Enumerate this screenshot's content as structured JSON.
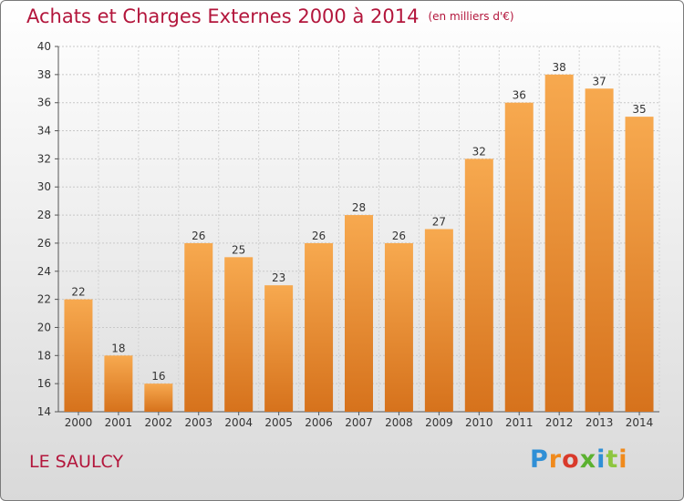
{
  "header": {
    "title": "Achats et Charges Externes 2000 à 2014",
    "unit": "(en milliers d'€)"
  },
  "commune": "LE SAULCY",
  "logo": {
    "letters": [
      "P",
      "r",
      "o",
      "x",
      "i",
      "t",
      "i"
    ],
    "colors": [
      "#2f8fd6",
      "#f08a1c",
      "#d93a2b",
      "#5bb130",
      "#2f8fd6",
      "#8dc63f",
      "#f08a1c"
    ]
  },
  "colors": {
    "title": "#b3163c",
    "bar_top": "#f7a94f",
    "bar_bottom": "#d6721c"
  },
  "chart_data": {
    "type": "bar",
    "categories": [
      "2000",
      "2001",
      "2002",
      "2003",
      "2004",
      "2005",
      "2006",
      "2007",
      "2008",
      "2009",
      "2010",
      "2011",
      "2012",
      "2013",
      "2014"
    ],
    "values": [
      22,
      18,
      16,
      26,
      25,
      23,
      26,
      28,
      26,
      27,
      32,
      36,
      38,
      37,
      35
    ],
    "title": "Achats et Charges Externes 2000 à 2014",
    "xlabel": "",
    "ylabel": "",
    "ylim": [
      14,
      40
    ],
    "yticks": [
      14,
      16,
      18,
      20,
      22,
      24,
      26,
      28,
      30,
      32,
      34,
      36,
      38,
      40
    ],
    "grid": true,
    "data_labels": true
  }
}
